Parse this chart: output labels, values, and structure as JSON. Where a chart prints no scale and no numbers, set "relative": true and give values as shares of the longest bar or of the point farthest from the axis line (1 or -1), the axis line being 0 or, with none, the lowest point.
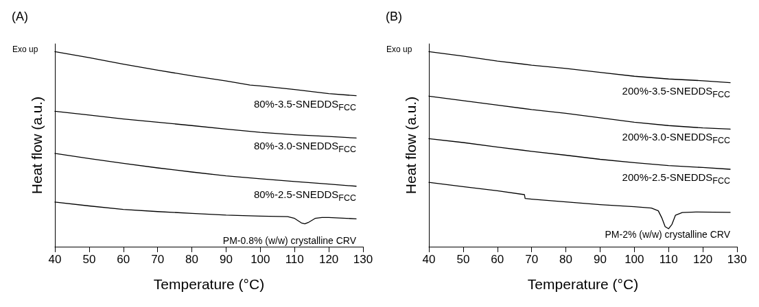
{
  "chart_data": [
    {
      "type": "line",
      "title": "(A)",
      "xlabel": "Temperature (°C)",
      "ylabel": "Heat flow (a.u.)",
      "relative": true,
      "xlim": [
        40,
        130
      ],
      "xticks": [
        40,
        50,
        60,
        70,
        80,
        90,
        100,
        110,
        120,
        130
      ],
      "legend": false,
      "grid": false,
      "marker": "none",
      "line_style": "solid",
      "annotations": [
        "Exo up"
      ],
      "series": [
        {
          "name": "80%-3.5-SNEDDS$_{FCC}$",
          "color": "#000000",
          "x": [
            40,
            50,
            60,
            70,
            80,
            90,
            97,
            100,
            110,
            120,
            128
          ],
          "values": [
            1.0,
            0.969,
            0.936,
            0.905,
            0.876,
            0.85,
            0.829,
            0.824,
            0.806,
            0.785,
            0.774
          ]
        },
        {
          "name": "80%-3.0-SNEDDS$_{FCC}$",
          "color": "#000000",
          "x": [
            40,
            50,
            60,
            70,
            80,
            90,
            100,
            110,
            120,
            128
          ],
          "values": [
            0.694,
            0.675,
            0.655,
            0.638,
            0.621,
            0.603,
            0.586,
            0.574,
            0.565,
            0.557
          ]
        },
        {
          "name": "80%-2.5-SNEDDS$_{FCC}$",
          "color": "#000000",
          "x": [
            40,
            50,
            60,
            70,
            80,
            90,
            100,
            110,
            120,
            128
          ],
          "values": [
            0.478,
            0.452,
            0.427,
            0.404,
            0.383,
            0.363,
            0.348,
            0.334,
            0.321,
            0.31
          ]
        },
        {
          "name": "PM-0.8% (w/w) crystalline CRV",
          "color": "#000000",
          "x": [
            40,
            50,
            60,
            70,
            80,
            90,
            100,
            108,
            110,
            112,
            113,
            114,
            116,
            118,
            120,
            128
          ],
          "values": [
            0.229,
            0.209,
            0.191,
            0.18,
            0.171,
            0.162,
            0.157,
            0.154,
            0.145,
            0.122,
            0.117,
            0.124,
            0.145,
            0.15,
            0.15,
            0.143
          ]
        }
      ]
    },
    {
      "type": "line",
      "title": "(B)",
      "xlabel": "Temperature (°C)",
      "ylabel": "Heat flow (a.u.)",
      "relative": true,
      "xlim": [
        40,
        130
      ],
      "xticks": [
        40,
        50,
        60,
        70,
        80,
        90,
        100,
        110,
        120,
        130
      ],
      "legend": false,
      "grid": false,
      "marker": "none",
      "line_style": "solid",
      "annotations": [
        "Exo up"
      ],
      "series": [
        {
          "name": "200%-3.5-SNEDDS$_{FCC}$",
          "color": "#000000",
          "x": [
            40,
            50,
            60,
            70,
            80,
            90,
            100,
            110,
            120,
            128
          ],
          "values": [
            1.0,
            0.977,
            0.952,
            0.931,
            0.914,
            0.894,
            0.874,
            0.86,
            0.851,
            0.841
          ]
        },
        {
          "name": "200%-3.0-SNEDDS$_{FCC}$",
          "color": "#000000",
          "x": [
            40,
            50,
            60,
            70,
            80,
            90,
            100,
            110,
            120,
            128
          ],
          "values": [
            0.772,
            0.749,
            0.726,
            0.703,
            0.684,
            0.661,
            0.638,
            0.621,
            0.609,
            0.603
          ]
        },
        {
          "name": "200%-2.5-SNEDDS$_{FCC}$",
          "color": "#000000",
          "x": [
            40,
            50,
            60,
            70,
            80,
            90,
            100,
            110,
            120,
            128
          ],
          "values": [
            0.554,
            0.534,
            0.511,
            0.489,
            0.469,
            0.448,
            0.431,
            0.416,
            0.406,
            0.397
          ]
        },
        {
          "name": "PM-2% (w/w) crystalline CRV",
          "color": "#000000",
          "x": [
            40,
            50,
            60,
            67.9,
            68.1,
            70,
            80,
            90,
            100,
            105,
            107,
            108,
            109,
            110,
            111,
            112,
            114,
            118,
            128
          ],
          "values": [
            0.33,
            0.308,
            0.287,
            0.267,
            0.247,
            0.244,
            0.23,
            0.216,
            0.205,
            0.198,
            0.184,
            0.149,
            0.103,
            0.092,
            0.115,
            0.161,
            0.175,
            0.178,
            0.176
          ]
        }
      ]
    }
  ]
}
